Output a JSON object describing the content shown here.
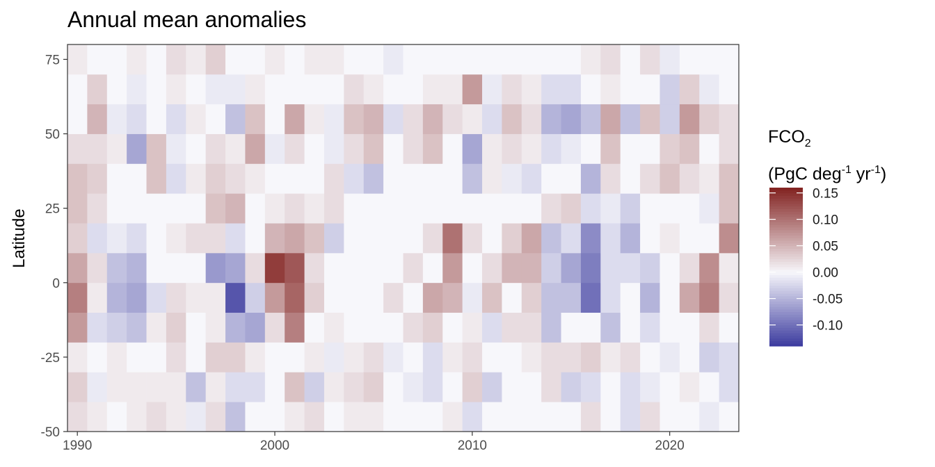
{
  "chart_data": {
    "type": "heatmap",
    "title": "Annual mean anomalies",
    "xlabel": "",
    "ylabel": "Latitude",
    "x_ticks": [
      1990,
      2000,
      2010,
      2020
    ],
    "x_tick_labels": [
      "1990",
      "2000",
      "2010",
      "2020"
    ],
    "y_ticks": [
      75,
      50,
      25,
      0,
      -25,
      -50
    ],
    "y_tick_labels": [
      "75",
      "50",
      "25",
      "0",
      "-25",
      "-50"
    ],
    "xlim": [
      1989.5,
      2023.5
    ],
    "ylim": [
      -50,
      80
    ],
    "years": [
      1990,
      1991,
      1992,
      1993,
      1994,
      1995,
      1996,
      1997,
      1998,
      1999,
      2000,
      2001,
      2002,
      2003,
      2004,
      2005,
      2006,
      2007,
      2008,
      2009,
      2010,
      2011,
      2012,
      2013,
      2014,
      2015,
      2016,
      2017,
      2018,
      2019,
      2020,
      2021,
      2022,
      2023
    ],
    "latitude_band_edges": [
      -50,
      -40,
      -30,
      -20,
      -10,
      0,
      10,
      20,
      30,
      40,
      50,
      60,
      70,
      80
    ],
    "values": [
      [
        0.02,
        0.03,
        0.01,
        0.07,
        0.09,
        0.06,
        0.03,
        0.04,
        0.04,
        0.02,
        0.0,
        0.0,
        0.01
      ],
      [
        0.01,
        -0.01,
        0.0,
        -0.02,
        0.01,
        0.02,
        -0.02,
        0.02,
        0.03,
        0.02,
        0.05,
        0.03,
        0.0
      ],
      [
        0.0,
        0.01,
        0.01,
        -0.03,
        -0.05,
        -0.04,
        -0.01,
        0.0,
        0.0,
        0.01,
        -0.01,
        0.0,
        0.0
      ],
      [
        0.01,
        0.01,
        0.0,
        -0.04,
        -0.06,
        -0.05,
        -0.02,
        0.0,
        0.0,
        -0.06,
        -0.02,
        -0.01,
        0.01
      ],
      [
        0.02,
        0.01,
        0.0,
        0.01,
        -0.02,
        0.0,
        0.0,
        0.0,
        0.04,
        0.04,
        0.0,
        0.0,
        0.0
      ],
      [
        0.01,
        0.01,
        0.02,
        0.03,
        0.02,
        0.0,
        0.01,
        0.0,
        -0.02,
        -0.01,
        -0.02,
        0.01,
        0.02
      ],
      [
        -0.01,
        -0.04,
        0.0,
        0.0,
        0.01,
        0.0,
        0.02,
        0.0,
        0.01,
        0.0,
        0.01,
        0.0,
        0.01
      ],
      [
        0.02,
        0.01,
        0.03,
        0.01,
        0.01,
        -0.07,
        0.02,
        0.04,
        0.03,
        0.02,
        0.0,
        -0.01,
        0.03
      ],
      [
        -0.04,
        -0.02,
        0.03,
        -0.05,
        -0.12,
        -0.06,
        -0.02,
        0.05,
        0.02,
        0.01,
        -0.04,
        -0.01,
        0.0
      ],
      [
        0.0,
        -0.02,
        0.01,
        -0.06,
        -0.03,
        0.02,
        0.0,
        0.0,
        0.01,
        0.06,
        0.04,
        0.01,
        0.0
      ],
      [
        0.0,
        0.0,
        0.0,
        0.02,
        0.07,
        0.14,
        0.05,
        0.01,
        0.0,
        -0.01,
        0.0,
        0.0,
        0.01
      ],
      [
        0.01,
        0.04,
        0.0,
        0.09,
        0.11,
        0.12,
        0.06,
        0.02,
        0.0,
        0.02,
        0.06,
        0.0,
        0.0
      ],
      [
        0.02,
        -0.03,
        0.01,
        0.0,
        0.03,
        0.02,
        0.04,
        0.01,
        0.0,
        0.0,
        0.01,
        0.0,
        0.01
      ],
      [
        0.0,
        0.01,
        -0.01,
        0.01,
        0.0,
        0.0,
        -0.03,
        0.02,
        0.02,
        -0.01,
        -0.01,
        0.0,
        0.01
      ],
      [
        0.01,
        0.02,
        0.01,
        0.0,
        0.0,
        0.0,
        0.0,
        0.0,
        -0.02,
        0.02,
        0.04,
        0.02,
        0.0
      ],
      [
        0.01,
        0.03,
        0.02,
        0.0,
        0.0,
        0.0,
        0.0,
        0.0,
        -0.04,
        0.04,
        0.05,
        0.01,
        0.0
      ],
      [
        0.0,
        0.0,
        -0.01,
        0.0,
        0.02,
        0.0,
        0.0,
        0.0,
        0.0,
        0.0,
        -0.02,
        0.0,
        -0.01
      ],
      [
        0.0,
        -0.01,
        0.0,
        0.02,
        0.0,
        0.02,
        0.0,
        0.0,
        0.0,
        0.02,
        0.02,
        0.0,
        0.0
      ],
      [
        0.0,
        -0.02,
        -0.02,
        0.03,
        0.06,
        0.0,
        0.02,
        0.0,
        0.0,
        0.04,
        0.05,
        0.01,
        0.0
      ],
      [
        0.01,
        0.0,
        0.01,
        0.0,
        0.05,
        0.07,
        0.1,
        0.0,
        0.0,
        0.0,
        0.02,
        0.01,
        0.0
      ],
      [
        -0.02,
        0.03,
        0.02,
        0.01,
        -0.01,
        0.0,
        0.02,
        0.0,
        -0.04,
        -0.06,
        0.01,
        0.07,
        0.0
      ],
      [
        0.0,
        -0.03,
        0.0,
        -0.02,
        0.04,
        0.02,
        0.0,
        0.0,
        0.01,
        0.01,
        -0.02,
        -0.01,
        0.0
      ],
      [
        0.0,
        0.0,
        0.0,
        0.02,
        0.0,
        0.05,
        0.03,
        0.0,
        -0.01,
        0.02,
        0.04,
        0.02,
        0.0
      ],
      [
        0.0,
        0.0,
        0.01,
        0.02,
        0.03,
        0.05,
        0.06,
        0.0,
        -0.02,
        0.01,
        0.02,
        0.01,
        0.0
      ],
      [
        0.0,
        0.02,
        0.02,
        -0.04,
        -0.04,
        -0.03,
        -0.04,
        0.02,
        0.0,
        -0.02,
        -0.05,
        -0.02,
        0.0
      ],
      [
        0.0,
        -0.03,
        0.02,
        0.0,
        -0.04,
        -0.06,
        -0.02,
        0.03,
        0.0,
        -0.01,
        -0.06,
        -0.02,
        0.0
      ],
      [
        0.02,
        -0.02,
        0.03,
        0.0,
        -0.1,
        -0.09,
        -0.08,
        -0.02,
        -0.05,
        0.0,
        -0.04,
        0.0,
        0.01
      ],
      [
        0.0,
        0.0,
        0.01,
        -0.04,
        -0.02,
        -0.02,
        -0.02,
        -0.01,
        0.02,
        0.04,
        0.06,
        0.01,
        0.02
      ],
      [
        -0.02,
        -0.02,
        0.02,
        0.0,
        0.0,
        -0.02,
        -0.05,
        -0.03,
        0.0,
        0.0,
        -0.04,
        0.0,
        0.0
      ],
      [
        0.02,
        -0.01,
        0.0,
        -0.02,
        -0.05,
        -0.03,
        0.0,
        0.0,
        0.02,
        0.0,
        0.04,
        0.0,
        0.02
      ],
      [
        0.0,
        0.0,
        -0.01,
        0.0,
        0.0,
        0.0,
        0.01,
        0.0,
        0.04,
        0.03,
        -0.03,
        -0.03,
        -0.01
      ],
      [
        0.0,
        0.01,
        0.0,
        0.0,
        0.06,
        0.02,
        0.0,
        0.0,
        0.02,
        0.04,
        0.07,
        0.03,
        0.0
      ],
      [
        -0.01,
        0.0,
        -0.03,
        0.02,
        0.09,
        0.08,
        0.0,
        -0.01,
        0.01,
        0.0,
        0.03,
        -0.01,
        0.0
      ],
      [
        0.0,
        -0.02,
        -0.02,
        0.0,
        0.02,
        0.01,
        0.08,
        0.04,
        0.04,
        0.02,
        0.02,
        0.0,
        0.0
      ]
    ],
    "colorbar": {
      "title_main": "FCO",
      "title_sub": "2",
      "title_line2_parts": [
        "(PgC deg",
        "-1",
        " yr",
        "-1",
        ")"
      ],
      "ticks": [
        0.15,
        0.1,
        0.05,
        0.0,
        -0.05,
        -0.1
      ],
      "tick_labels": [
        "0.15",
        "0.10",
        "0.05",
        "0.00",
        "-0.05",
        "-0.10"
      ],
      "limits": [
        -0.14,
        0.16
      ],
      "colors": {
        "low": "#3b3a9e",
        "mid": "#f7f7fb",
        "high": "#822220"
      }
    },
    "grid": false,
    "legend_position": "right"
  }
}
